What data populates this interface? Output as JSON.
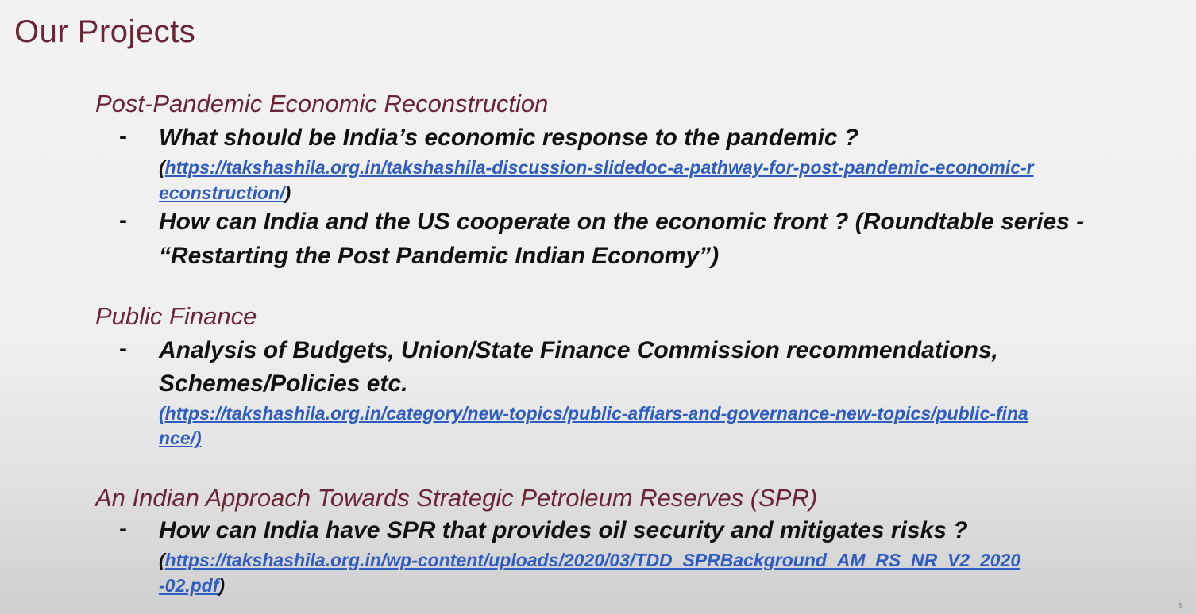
{
  "slide": {
    "title": "Our Projects",
    "corner_mark": "3"
  },
  "sections": [
    {
      "heading": "Post-Pandemic Economic Reconstruction",
      "items": [
        {
          "bullet": "-",
          "text": "What should be India’s economic response to the pandemic ?",
          "link_open": "(",
          "link_line1": "https://takshashila.org.in/takshashila-discussion-slidedoc-a-pathway-for-post-pandemic-economic-r",
          "link_line2": "econstruction/",
          "link_close": ")"
        },
        {
          "bullet": "-",
          "text_line1": "How can India and the US cooperate on the economic front ? (Roundtable series -",
          "text_line2": "“Restarting the Post Pandemic Indian Economy”)"
        }
      ]
    },
    {
      "heading": "Public Finance",
      "items": [
        {
          "bullet": "-",
          "text_line1": "Analysis of Budgets, Union/State Finance Commission recommendations,",
          "text_line2": "Schemes/Policies etc.",
          "link_line1": "(https://takshashila.org.in/category/new-topics/public-affiars-and-governance-new-topics/public-fina",
          "link_line2": "nce/)"
        }
      ]
    },
    {
      "heading": "An Indian Approach Towards Strategic Petroleum Reserves (SPR)",
      "items": [
        {
          "bullet": "-",
          "text": "How can India have SPR that provides oil security and mitigates risks ?",
          "link_open": "(",
          "link_line1": "https://takshashila.org.in/wp-content/uploads/2020/03/TDD_SPRBackground_AM_RS_NR_V2_2020",
          "link_line2": "-02.pdf",
          "link_close": ")"
        }
      ]
    }
  ],
  "colors": {
    "title": "#6b2336",
    "heading": "#6b2336",
    "body_text": "#111111",
    "link": "#2f5cc0"
  }
}
